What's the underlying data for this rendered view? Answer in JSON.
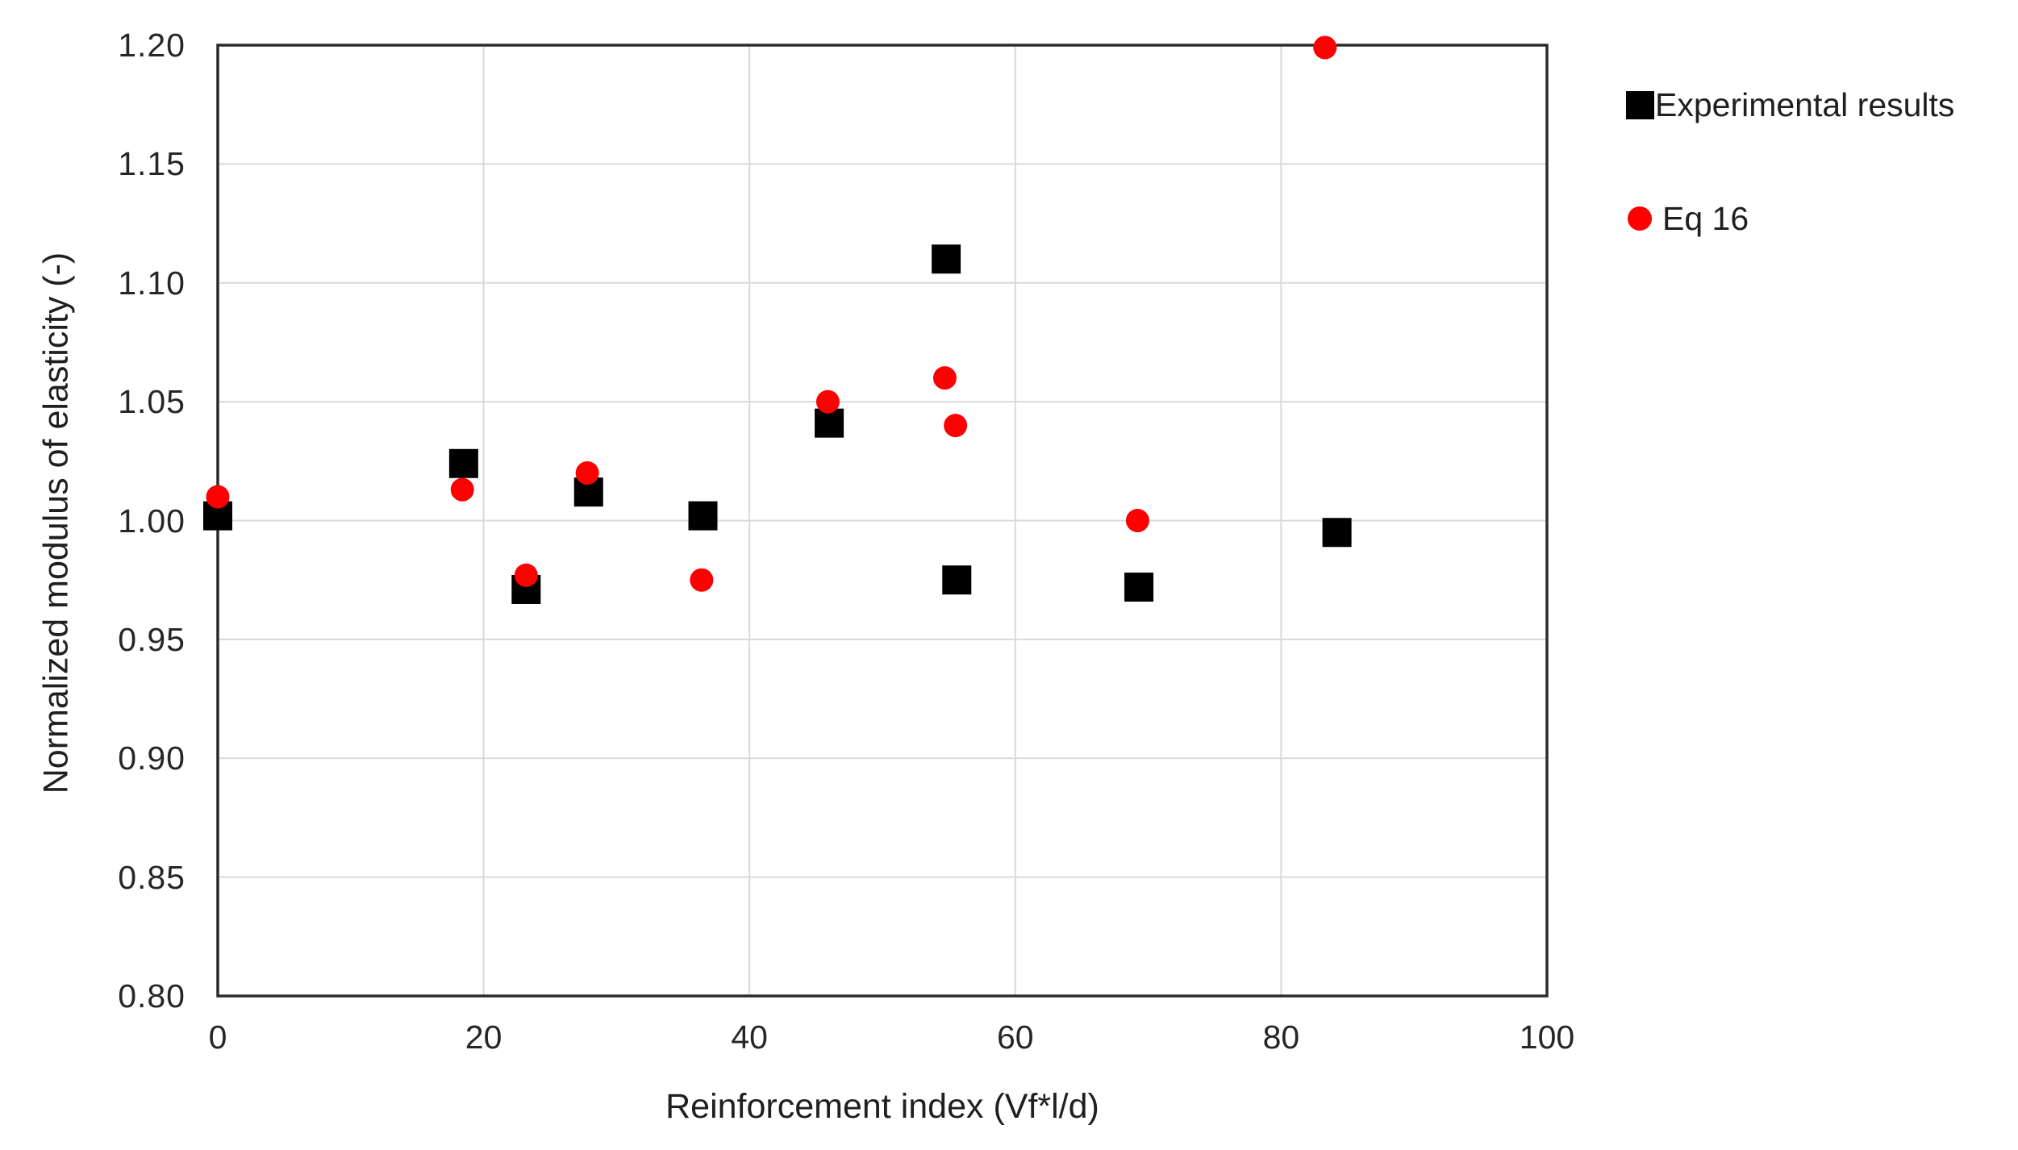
{
  "chart_data": {
    "type": "scatter",
    "title": "",
    "xlabel": "Reinforcement index (Vf*l/d)",
    "ylabel": "Normalized modulus of elasticity (-)",
    "xlim": [
      0,
      100
    ],
    "ylim": [
      0.8,
      1.2
    ],
    "x_ticks": [
      "0",
      "20",
      "40",
      "60",
      "80",
      "100"
    ],
    "y_ticks": [
      "0.80",
      "0.85",
      "0.90",
      "0.95",
      "1.00",
      "1.05",
      "1.10",
      "1.15",
      "1.20"
    ],
    "grid": true,
    "grid_color": "#d9d9d9",
    "axis_color": "#2b2b2b",
    "legend_position": "right",
    "series": [
      {
        "name": "Experimental results",
        "marker": "square",
        "color": "#000000",
        "points": [
          [
            0,
            1.002
          ],
          [
            18.5,
            1.024
          ],
          [
            23.2,
            0.971
          ],
          [
            27.9,
            1.012
          ],
          [
            36.5,
            1.002
          ],
          [
            46,
            1.041
          ],
          [
            54.8,
            1.11
          ],
          [
            55.6,
            0.975
          ],
          [
            69.3,
            0.972
          ],
          [
            84.2,
            0.995
          ]
        ]
      },
      {
        "name": "Eq 16",
        "marker": "circle",
        "color": "#fe0000",
        "points": [
          [
            0,
            1.01
          ],
          [
            18.4,
            1.013
          ],
          [
            23.2,
            0.977
          ],
          [
            27.8,
            1.02
          ],
          [
            36.4,
            0.975
          ],
          [
            45.9,
            1.05
          ],
          [
            54.7,
            1.06
          ],
          [
            55.5,
            1.04
          ],
          [
            69.2,
            1.0
          ],
          [
            83.3,
            1.199
          ]
        ]
      }
    ]
  }
}
